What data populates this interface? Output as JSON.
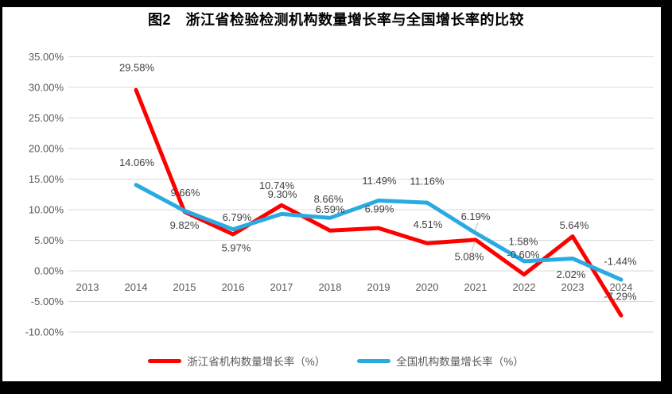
{
  "title": "图2　浙江省检验检测机构数量增长率与全国增长率的比较",
  "colors": {
    "zhejiang_line": "#FF0000",
    "national_line": "#29ABE2",
    "gridline": "#D9D9D9",
    "axis_text": "#595959",
    "data_label_text": "#404040",
    "leader_line": "#BFBFBF",
    "frame": "#000000",
    "plot_background": "#FFFFFF"
  },
  "chart_data": {
    "type": "line",
    "title": "图2　浙江省检验检测机构数量增长率与全国增长率的比较",
    "x": [
      "2013",
      "2014",
      "2015",
      "2016",
      "2017",
      "2018",
      "2019",
      "2020",
      "2021",
      "2022",
      "2023",
      "2024"
    ],
    "series": [
      {
        "name": "浙江省机构数量增长率（%）",
        "color": "#FF0000",
        "values": [
          null,
          29.58,
          9.66,
          5.97,
          10.74,
          6.59,
          6.99,
          4.51,
          5.08,
          -0.6,
          5.64,
          -7.29
        ]
      },
      {
        "name": "全国机构数量增长率（%）",
        "color": "#29ABE2",
        "values": [
          null,
          14.06,
          9.82,
          6.79,
          9.3,
          8.66,
          11.49,
          11.16,
          6.19,
          1.58,
          2.02,
          -1.44
        ]
      }
    ],
    "data_labels": true,
    "ylim": [
      -10,
      35
    ],
    "ytick_step": 5,
    "yticks": [
      "35.00%",
      "30.00%",
      "25.00%",
      "20.00%",
      "15.00%",
      "10.00%",
      "5.00%",
      "0.00%",
      "-5.00%",
      "-10.00%"
    ],
    "grid": "horizontal-only",
    "legend_position": "bottom",
    "xlabel": "",
    "ylabel": ""
  }
}
